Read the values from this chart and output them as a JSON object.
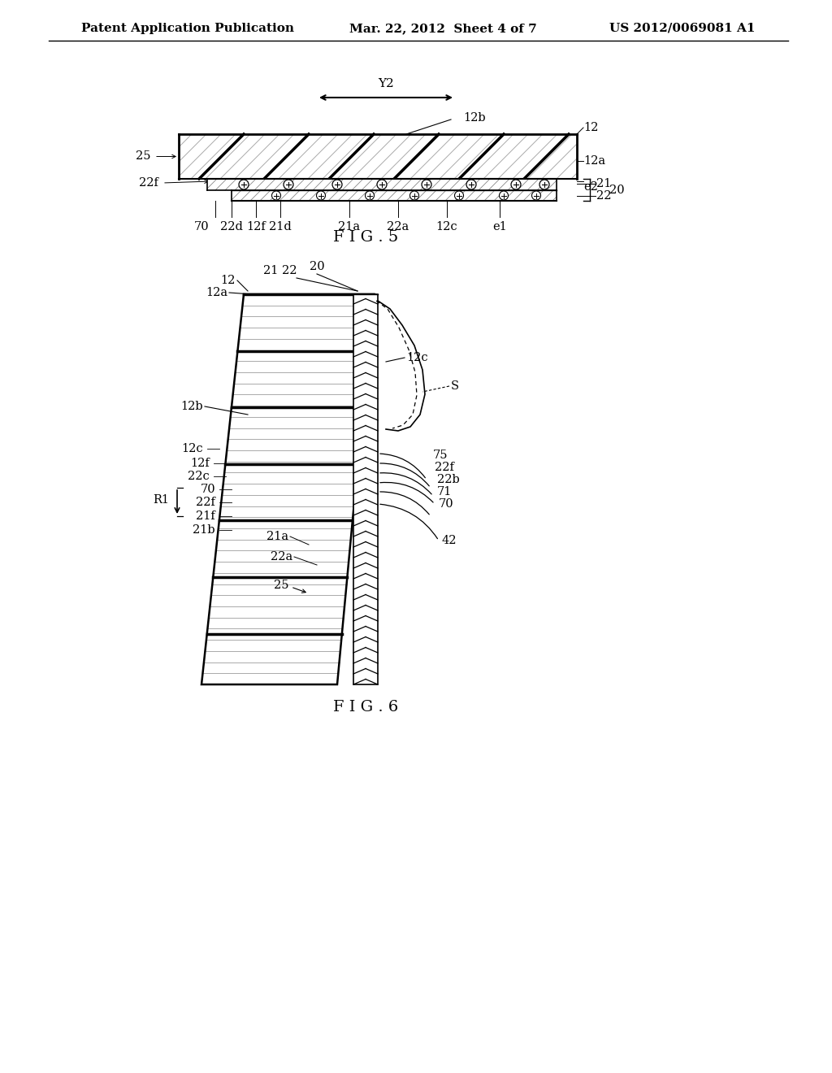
{
  "background_color": "#ffffff",
  "header_left": "Patent Application Publication",
  "header_mid": "Mar. 22, 2012  Sheet 4 of 7",
  "header_right": "US 2012/0069081 A1",
  "fig5_label": "F I G . 5",
  "fig6_label": "F I G . 6",
  "line_color": "#000000"
}
